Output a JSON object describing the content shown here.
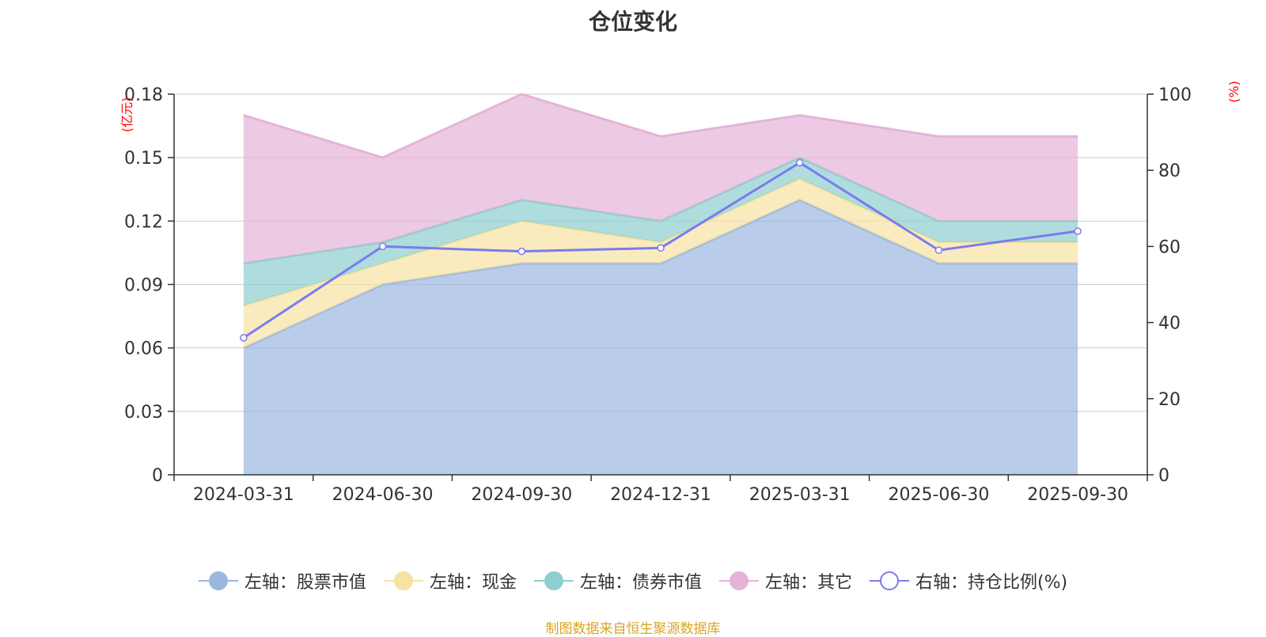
{
  "chart_data": {
    "type": "area",
    "title": "仓位变化",
    "categories": [
      "2024-03-31",
      "2024-06-30",
      "2024-09-30",
      "2024-12-31",
      "2025-03-31",
      "2025-06-30",
      "2025-09-30"
    ],
    "y_left": {
      "label": "(亿元)",
      "range": [
        0,
        0.18
      ],
      "ticks": [
        "0",
        "0.03",
        "0.06",
        "0.09",
        "0.12",
        "0.15",
        "0.18"
      ]
    },
    "y_right": {
      "label": "(%)",
      "range": [
        0,
        100
      ],
      "ticks": [
        "0",
        "20",
        "40",
        "60",
        "80",
        "100"
      ]
    },
    "stacked": true,
    "series": [
      {
        "name": "左轴：股票市值",
        "axis": "left",
        "kind": "area",
        "color": "#9bb6df",
        "values": [
          0.06,
          0.09,
          0.1,
          0.1,
          0.13,
          0.1,
          0.1
        ]
      },
      {
        "name": "左轴：现金",
        "axis": "left",
        "kind": "area",
        "color": "#f6e3a1",
        "values": [
          0.02,
          0.01,
          0.02,
          0.01,
          0.01,
          0.01,
          0.01
        ]
      },
      {
        "name": "左轴：债券市值",
        "axis": "left",
        "kind": "area",
        "color": "#8dcfcf",
        "values": [
          0.02,
          0.01,
          0.01,
          0.01,
          0.01,
          0.01,
          0.01
        ]
      },
      {
        "name": "左轴：其它",
        "axis": "left",
        "kind": "area",
        "color": "#e5b3d8",
        "values": [
          0.07,
          0.04,
          0.05,
          0.04,
          0.02,
          0.04,
          0.04
        ]
      },
      {
        "name": "右轴：持仓比例(%)",
        "axis": "right",
        "kind": "line",
        "color": "#7b7bef",
        "values": [
          36.0,
          60.0,
          58.7,
          59.6,
          82.0,
          59.0,
          64.0
        ]
      }
    ],
    "grid": true,
    "legend_position": "bottom"
  },
  "colors": {
    "title": "#333333",
    "axis_label_red": "#ff0000",
    "footer": "#d9a526",
    "grid": "#cccccc"
  },
  "footer": "制图数据来自恒生聚源数据库"
}
